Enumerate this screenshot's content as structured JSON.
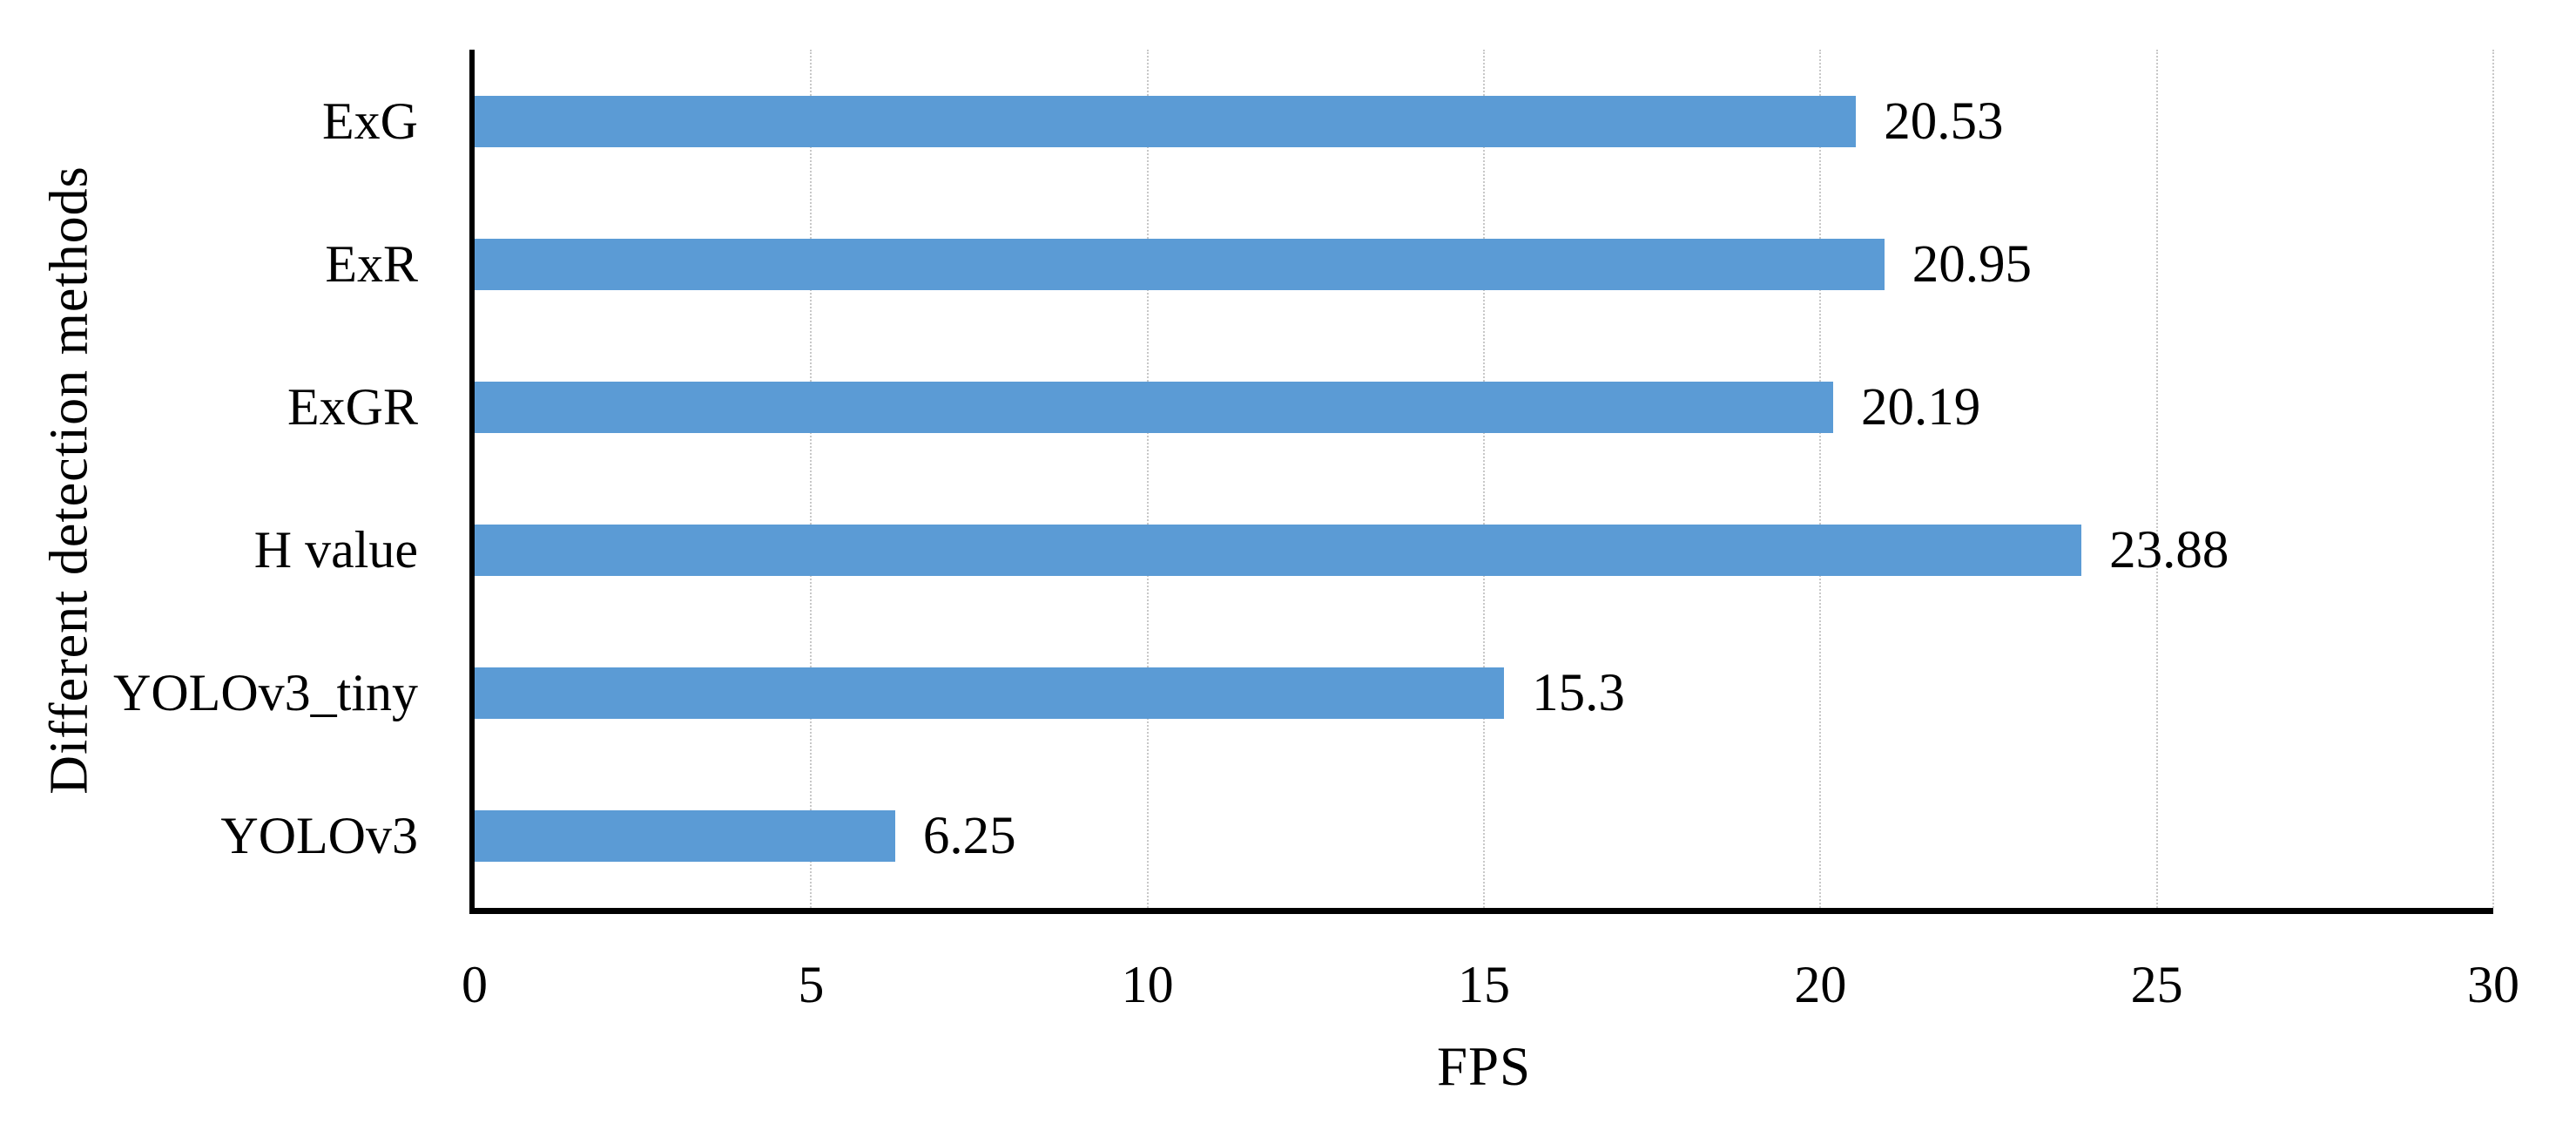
{
  "figure": {
    "background": "#ffffff",
    "axis_line_color": "#000000",
    "gridline_color": "#c8c8c8",
    "text_color": "#000000"
  },
  "chart_data": {
    "type": "bar",
    "orientation": "horizontal",
    "title": "",
    "xlabel": "FPS",
    "ylabel": "Different detection methods",
    "categories": [
      "ExG",
      "ExR",
      "ExGR",
      "H value",
      "YOLOv3_tiny",
      "YOLOv3"
    ],
    "values": [
      20.53,
      20.95,
      20.19,
      23.88,
      15.3,
      6.25
    ],
    "value_labels": [
      "20.53",
      "20.95",
      "20.19",
      "23.88",
      "15.3",
      "6.25"
    ],
    "xlim": [
      0,
      30
    ],
    "x_ticks": [
      0,
      5,
      10,
      15,
      20,
      25,
      30
    ],
    "x_tick_labels": [
      "0",
      "5",
      "10",
      "15",
      "20",
      "25",
      "30"
    ],
    "grid": "vertical dotted gridlines at each x tick",
    "legend_position": "none",
    "bar_color": "#5b9bd5"
  }
}
